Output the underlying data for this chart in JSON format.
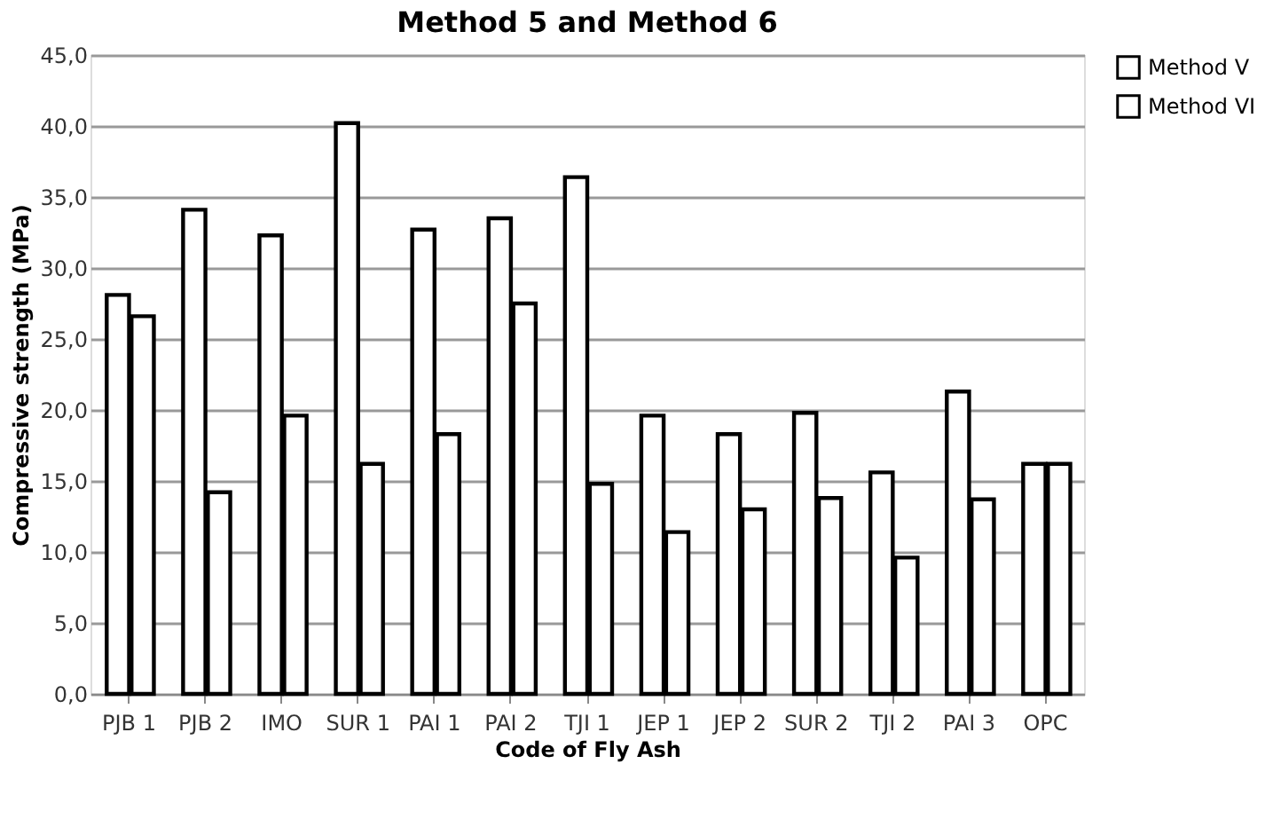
{
  "chart_data": {
    "type": "bar",
    "title": "Method 5 and Method 6",
    "xlabel": "Code of Fly Ash",
    "ylabel": "Compressive strength  (MPa)",
    "categories": [
      "PJB 1",
      "PJB 2",
      "IMO",
      "SUR 1",
      "PAI 1",
      "PAI 2",
      "TJI 1",
      "JEP 1",
      "JEP 2",
      "SUR 2",
      "TJI 2",
      "PAI 3",
      "OPC"
    ],
    "series": [
      {
        "name": "Method V",
        "color": "#ffffff",
        "values": [
          28.1,
          34.1,
          32.3,
          40.2,
          32.7,
          33.5,
          36.4,
          19.6,
          18.3,
          19.8,
          15.6,
          21.3,
          16.2
        ]
      },
      {
        "name": "Method VI",
        "color": "#ffffff",
        "values": [
          26.6,
          14.2,
          19.6,
          16.2,
          18.3,
          27.5,
          14.8,
          11.4,
          13.0,
          13.8,
          9.6,
          13.7,
          16.2
        ]
      }
    ],
    "ylim": [
      0,
      45
    ],
    "yticks": [
      {
        "value": 0,
        "label": "0,0"
      },
      {
        "value": 5,
        "label": "5,0"
      },
      {
        "value": 10,
        "label": "10,0"
      },
      {
        "value": 15,
        "label": "15,0"
      },
      {
        "value": 20,
        "label": "20,0"
      },
      {
        "value": 25,
        "label": "25,0"
      },
      {
        "value": 30,
        "label": "30,0"
      },
      {
        "value": 35,
        "label": "35,0"
      },
      {
        "value": 40,
        "label": "40,0"
      },
      {
        "value": 45,
        "label": "45,0"
      }
    ],
    "grid": "y",
    "legend": "right"
  }
}
